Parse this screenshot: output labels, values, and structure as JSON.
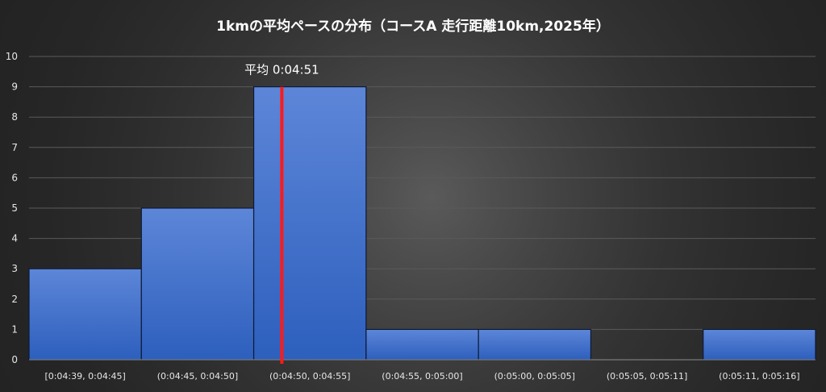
{
  "chart_data": {
    "type": "bar",
    "title": "1kmの平均ペースの分布（コースA 走行距離10km,2025年）",
    "categories": [
      "[0:04:39, 0:04:45]",
      "(0:04:45, 0:04:50]",
      "(0:04:50, 0:04:55]",
      "(0:04:55, 0:05:00]",
      "(0:05:00, 0:05:05]",
      "(0:05:05, 0:05:11]",
      "(0:05:11, 0:05:16]"
    ],
    "values": [
      3,
      5,
      9,
      1,
      1,
      0,
      1
    ],
    "yticks": [
      "0",
      "1",
      "2",
      "3",
      "4",
      "5",
      "6",
      "7",
      "8",
      "9",
      "10"
    ],
    "ylim": [
      0,
      10
    ],
    "xlabel": "",
    "ylabel": "",
    "grid": true,
    "bar_color": "#3a6cc6",
    "mean_line": {
      "label": "平均 0:04:51",
      "category_index": 2,
      "fraction_within_bin": 0.25,
      "color": "#ff1a1a"
    }
  }
}
